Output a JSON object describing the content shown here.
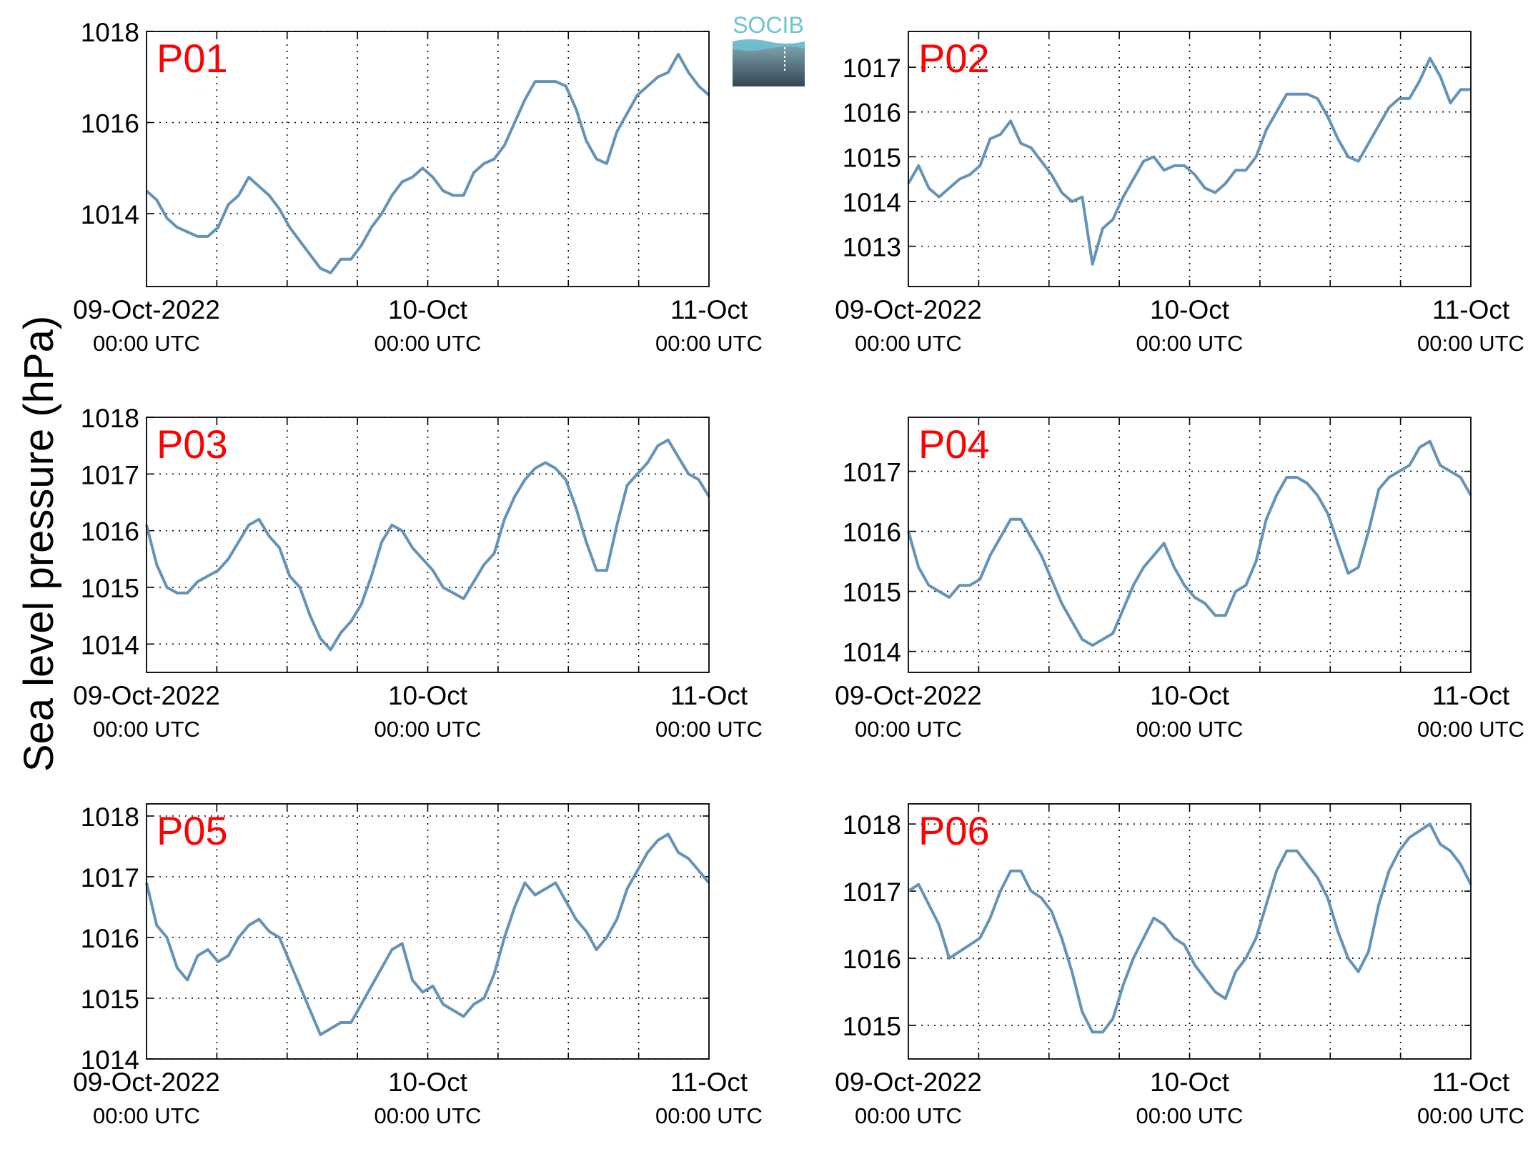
{
  "ylabel": "Sea level pressure (hPa)",
  "logo": {
    "text": "SOCIB",
    "color_top": "#6cc3d5",
    "color_bottom": "#334653"
  },
  "x_tick_labels": [
    {
      "date": "09-Oct-2022",
      "time": "00:00 UTC"
    },
    {
      "date": "10-Oct",
      "time": "00:00 UTC"
    },
    {
      "date": "11-Oct",
      "time": "00:00 UTC"
    }
  ],
  "colors": {
    "line": "#6493b8",
    "panel_label": "#ff0000",
    "axis": "#000000"
  },
  "chart_data": [
    {
      "type": "line",
      "title": "P01",
      "x_start": "2022-10-09T00:00Z",
      "x_end": "2022-10-11T00:00Z",
      "ylim": [
        1012.4,
        1018.0
      ],
      "yticks": [
        1014,
        1016,
        1018
      ],
      "grid": true,
      "series": [
        {
          "values": [
            1014.5,
            1014.3,
            1013.9,
            1013.7,
            1013.6,
            1013.5,
            1013.5,
            1013.7,
            1014.2,
            1014.4,
            1014.8,
            1014.6,
            1014.4,
            1014.1,
            1013.7,
            1013.4,
            1013.1,
            1012.8,
            1012.7,
            1013.0,
            1013.0,
            1013.3,
            1013.7,
            1014.0,
            1014.4,
            1014.7,
            1014.8,
            1015.0,
            1014.8,
            1014.5,
            1014.4,
            1014.4,
            1014.9,
            1015.1,
            1015.2,
            1015.5,
            1016.0,
            1016.5,
            1016.9,
            1016.9,
            1016.9,
            1016.8,
            1016.3,
            1015.6,
            1015.2,
            1015.1,
            1015.8,
            1016.2,
            1016.6,
            1016.8,
            1017.0,
            1017.1,
            1017.5,
            1017.1,
            1016.8,
            1016.6
          ]
        }
      ]
    },
    {
      "type": "line",
      "title": "P02",
      "x_start": "2022-10-09T00:00Z",
      "x_end": "2022-10-11T00:00Z",
      "ylim": [
        1012.1,
        1017.8
      ],
      "yticks": [
        1013,
        1014,
        1015,
        1016,
        1017
      ],
      "grid": true,
      "series": [
        {
          "values": [
            1014.4,
            1014.8,
            1014.3,
            1014.1,
            1014.3,
            1014.5,
            1014.6,
            1014.8,
            1015.4,
            1015.5,
            1015.8,
            1015.3,
            1015.2,
            1014.9,
            1014.6,
            1014.2,
            1014.0,
            1014.1,
            1012.6,
            1013.4,
            1013.6,
            1014.1,
            1014.5,
            1014.9,
            1015.0,
            1014.7,
            1014.8,
            1014.8,
            1014.6,
            1014.3,
            1014.2,
            1014.4,
            1014.7,
            1014.7,
            1015.0,
            1015.6,
            1016.0,
            1016.4,
            1016.4,
            1016.4,
            1016.3,
            1015.9,
            1015.4,
            1015.0,
            1014.9,
            1015.3,
            1015.7,
            1016.1,
            1016.3,
            1016.3,
            1016.7,
            1017.2,
            1016.8,
            1016.2,
            1016.5,
            1016.5
          ]
        }
      ]
    },
    {
      "type": "line",
      "title": "P03",
      "x_start": "2022-10-09T00:00Z",
      "x_end": "2022-10-11T00:00Z",
      "ylim": [
        1013.5,
        1018.0
      ],
      "yticks": [
        1014,
        1015,
        1016,
        1017,
        1018
      ],
      "grid": true,
      "series": [
        {
          "values": [
            1016.1,
            1015.4,
            1015.0,
            1014.9,
            1014.9,
            1015.1,
            1015.2,
            1015.3,
            1015.5,
            1015.8,
            1016.1,
            1016.2,
            1015.9,
            1015.7,
            1015.2,
            1015.0,
            1014.5,
            1014.1,
            1013.9,
            1014.2,
            1014.4,
            1014.7,
            1015.2,
            1015.8,
            1016.1,
            1016.0,
            1015.7,
            1015.5,
            1015.3,
            1015.0,
            1014.9,
            1014.8,
            1015.1,
            1015.4,
            1015.6,
            1016.2,
            1016.6,
            1016.9,
            1017.1,
            1017.2,
            1017.1,
            1016.9,
            1016.4,
            1015.8,
            1015.3,
            1015.3,
            1016.1,
            1016.8,
            1017.0,
            1017.2,
            1017.5,
            1017.6,
            1017.3,
            1017.0,
            1016.9,
            1016.6
          ]
        }
      ]
    },
    {
      "type": "line",
      "title": "P04",
      "x_start": "2022-10-09T00:00Z",
      "x_end": "2022-10-11T00:00Z",
      "ylim": [
        1013.65,
        1017.9
      ],
      "yticks": [
        1014,
        1015,
        1016,
        1017
      ],
      "grid": true,
      "series": [
        {
          "values": [
            1016.0,
            1015.4,
            1015.1,
            1015.0,
            1014.9,
            1015.1,
            1015.1,
            1015.2,
            1015.6,
            1015.9,
            1016.2,
            1016.2,
            1015.9,
            1015.6,
            1015.2,
            1014.8,
            1014.5,
            1014.2,
            1014.1,
            1014.2,
            1014.3,
            1014.7,
            1015.1,
            1015.4,
            1015.6,
            1015.8,
            1015.4,
            1015.1,
            1014.9,
            1014.8,
            1014.6,
            1014.6,
            1015.0,
            1015.1,
            1015.5,
            1016.2,
            1016.6,
            1016.9,
            1016.9,
            1016.8,
            1016.6,
            1016.3,
            1015.8,
            1015.3,
            1015.4,
            1016.0,
            1016.7,
            1016.9,
            1017.0,
            1017.1,
            1017.4,
            1017.5,
            1017.1,
            1017.0,
            1016.9,
            1016.6
          ]
        }
      ]
    },
    {
      "type": "line",
      "title": "P05",
      "x_start": "2022-10-09T00:00Z",
      "x_end": "2022-10-11T00:00Z",
      "ylim": [
        1014.0,
        1018.2
      ],
      "yticks": [
        1014,
        1015,
        1016,
        1017,
        1018
      ],
      "grid": true,
      "series": [
        {
          "values": [
            1016.9,
            1016.2,
            1016.0,
            1015.5,
            1015.3,
            1015.7,
            1015.8,
            1015.6,
            1015.7,
            1016.0,
            1016.2,
            1016.3,
            1016.1,
            1016.0,
            1015.6,
            1015.2,
            1014.8,
            1014.4,
            1014.5,
            1014.6,
            1014.6,
            1014.9,
            1015.2,
            1015.5,
            1015.8,
            1015.9,
            1015.3,
            1015.1,
            1015.2,
            1014.9,
            1014.8,
            1014.7,
            1014.9,
            1015.0,
            1015.4,
            1016.0,
            1016.5,
            1016.9,
            1016.7,
            1016.8,
            1016.9,
            1016.6,
            1016.3,
            1016.1,
            1015.8,
            1016.0,
            1016.3,
            1016.8,
            1017.1,
            1017.4,
            1017.6,
            1017.7,
            1017.4,
            1017.3,
            1017.1,
            1016.9
          ]
        }
      ]
    },
    {
      "type": "line",
      "title": "P06",
      "x_start": "2022-10-09T00:00Z",
      "x_end": "2022-10-11T00:00Z",
      "ylim": [
        1014.5,
        1018.3
      ],
      "yticks": [
        1015,
        1016,
        1017,
        1018
      ],
      "grid": true,
      "series": [
        {
          "values": [
            1017.0,
            1017.1,
            1016.8,
            1016.5,
            1016.0,
            1016.1,
            1016.2,
            1016.3,
            1016.6,
            1017.0,
            1017.3,
            1017.3,
            1017.0,
            1016.9,
            1016.7,
            1016.3,
            1015.8,
            1015.2,
            1014.9,
            1014.9,
            1015.1,
            1015.6,
            1016.0,
            1016.3,
            1016.6,
            1016.5,
            1016.3,
            1016.2,
            1015.9,
            1015.7,
            1015.5,
            1015.4,
            1015.8,
            1016.0,
            1016.3,
            1016.8,
            1017.3,
            1017.6,
            1017.6,
            1017.4,
            1017.2,
            1016.9,
            1016.4,
            1016.0,
            1015.8,
            1016.1,
            1016.8,
            1017.3,
            1017.6,
            1017.8,
            1017.9,
            1018.0,
            1017.7,
            1017.6,
            1017.4,
            1017.1
          ]
        }
      ]
    }
  ]
}
